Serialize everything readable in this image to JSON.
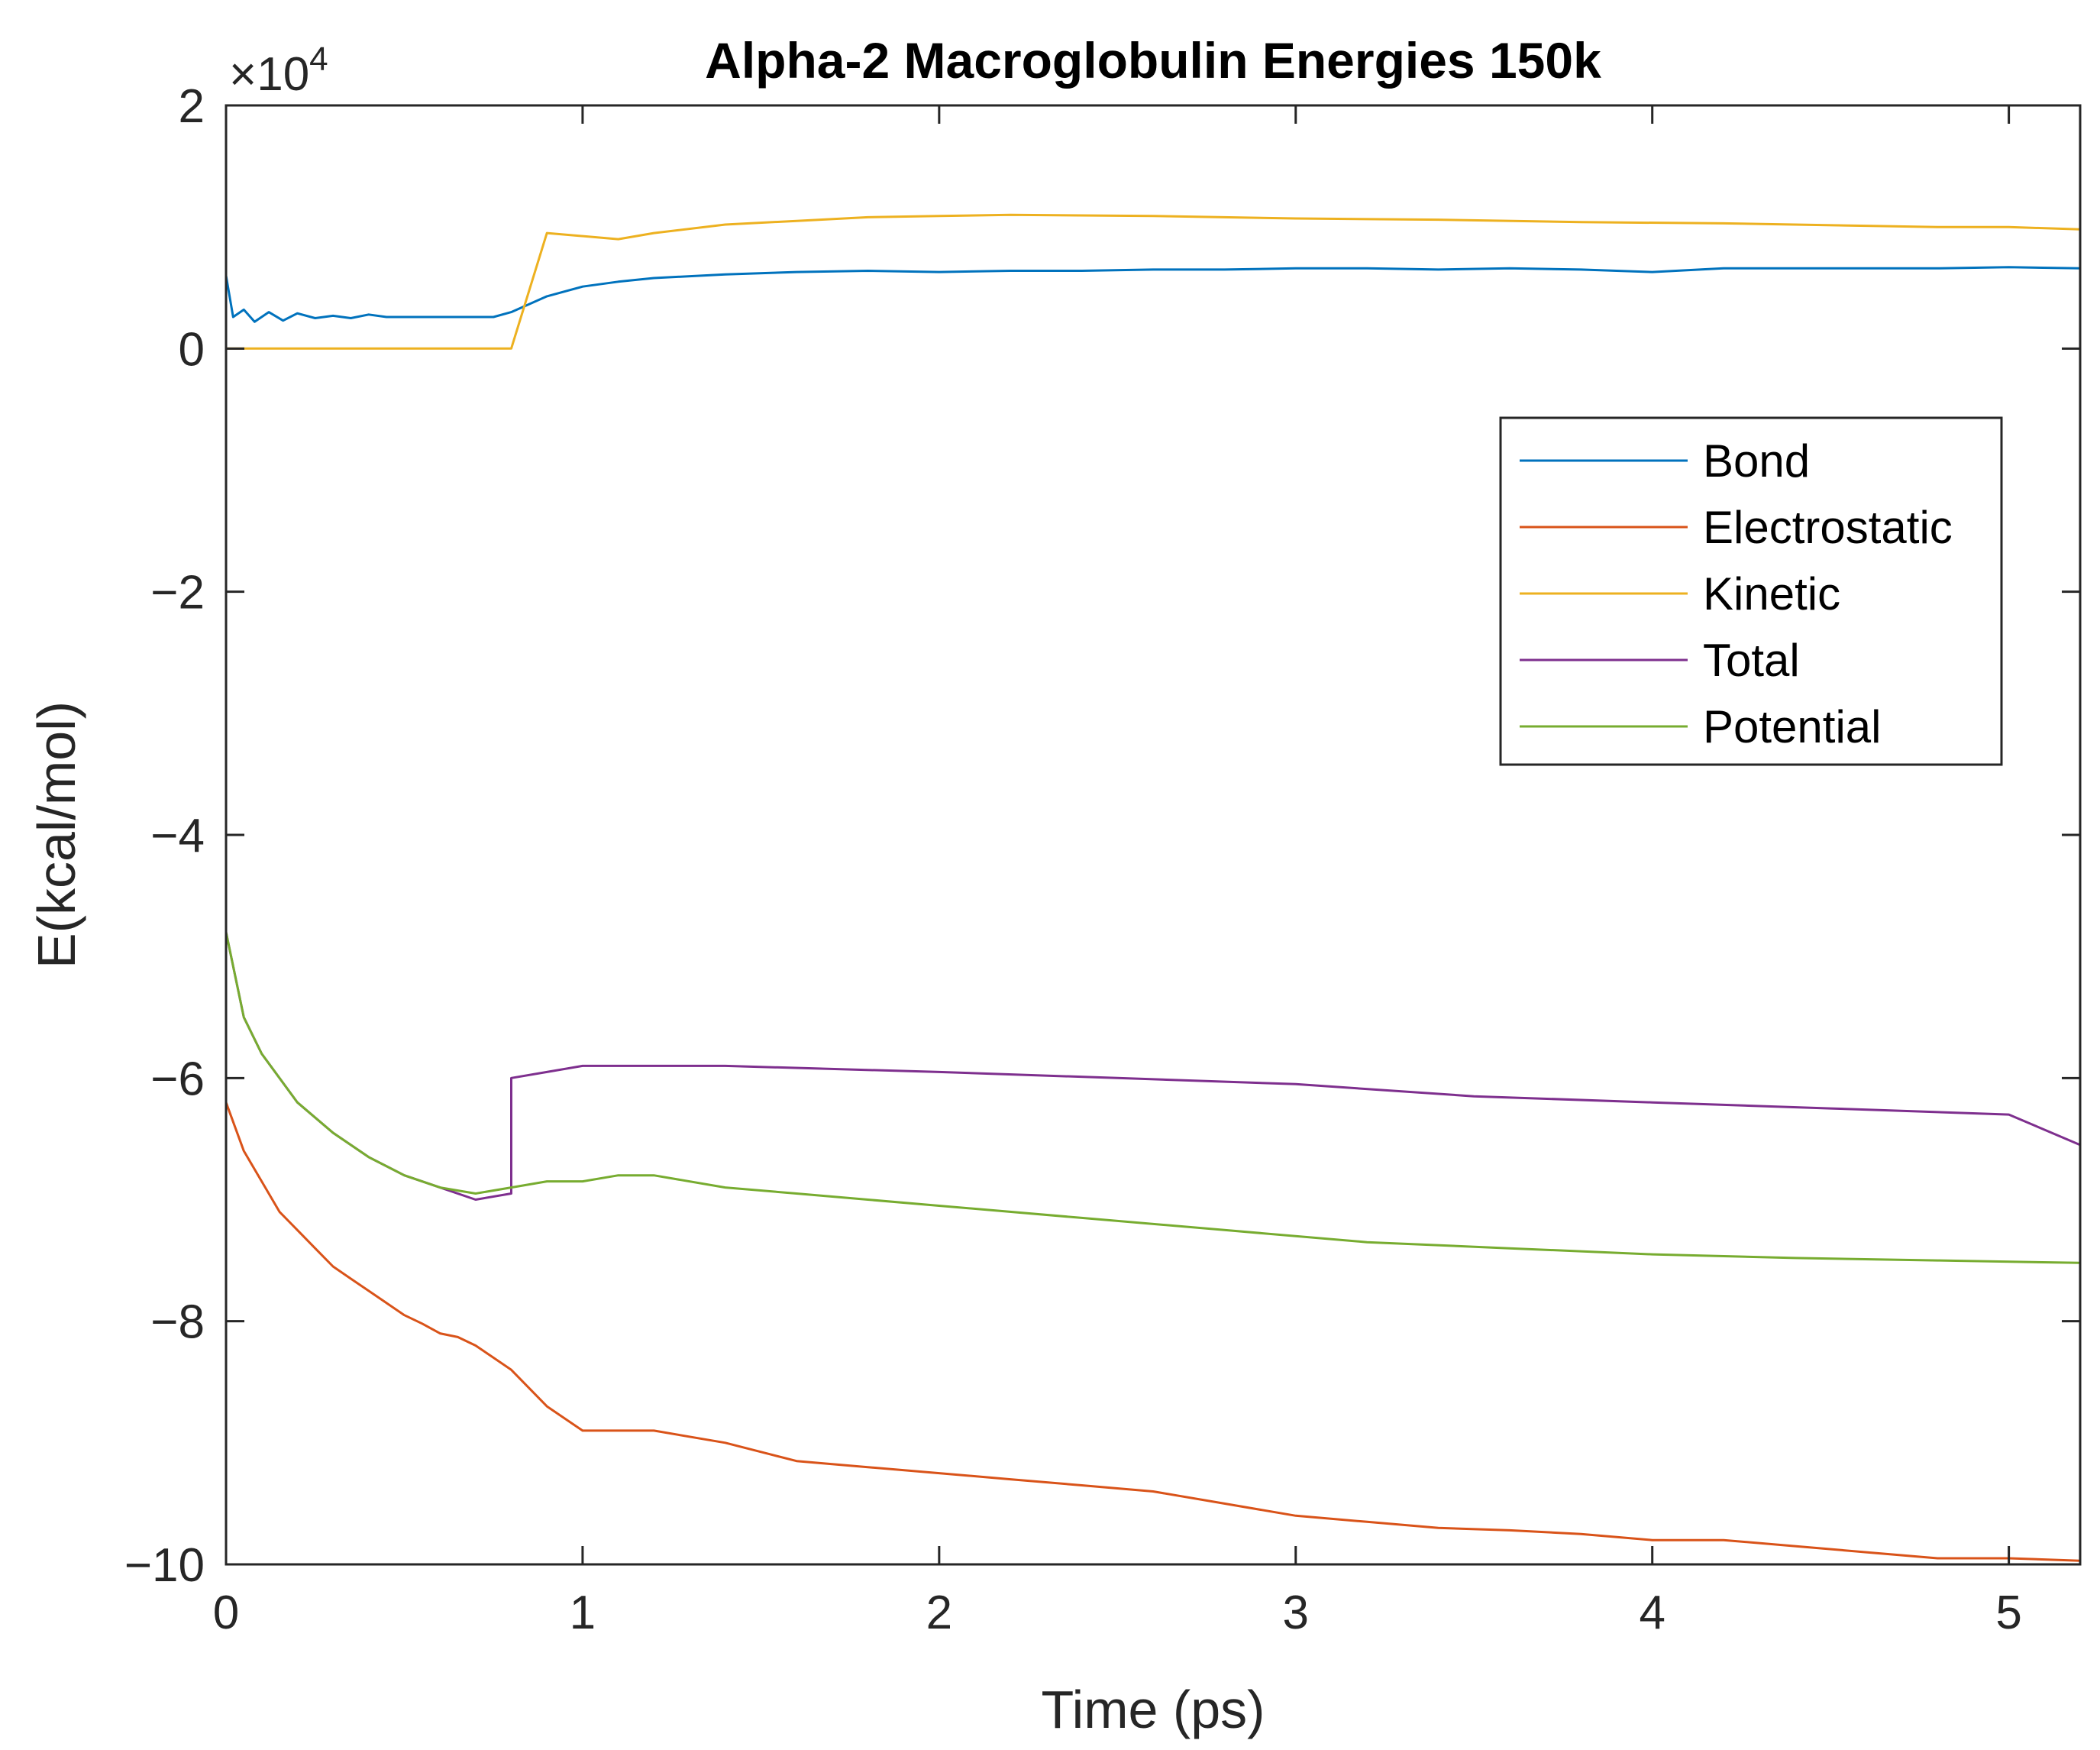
{
  "chart_data": {
    "type": "line",
    "title": "Alpha-2 Macroglobulin Energies 150k",
    "xlabel": "Time (ps)",
    "ylabel": "E(kcal/mol)",
    "xlim": [
      0,
      5.2
    ],
    "ylim": [
      -100000,
      20000
    ],
    "xticks": [
      0,
      1,
      2,
      3,
      4,
      5
    ],
    "xtick_labels": [
      "0",
      "1",
      "2",
      "3",
      "4",
      "5"
    ],
    "yticks": [
      20000,
      0,
      -20000,
      -40000,
      -60000,
      -80000,
      -100000
    ],
    "ytick_labels": [
      "2",
      "0",
      "−2",
      "−4",
      "−6",
      "−8",
      "−10"
    ],
    "y_exponent": {
      "base": "×10",
      "power": "4"
    },
    "legend_location": "right",
    "series": [
      {
        "name": "Bond",
        "color": "#0072BD",
        "x": [
          0,
          0.02,
          0.05,
          0.08,
          0.12,
          0.16,
          0.2,
          0.25,
          0.3,
          0.35,
          0.4,
          0.45,
          0.5,
          0.55,
          0.6,
          0.65,
          0.7,
          0.75,
          0.8,
          0.9,
          1.0,
          1.1,
          1.2,
          1.4,
          1.6,
          1.8,
          2.0,
          2.2,
          2.4,
          2.6,
          2.8,
          3.0,
          3.2,
          3.4,
          3.6,
          3.8,
          4.0,
          4.2,
          4.4,
          4.6,
          4.8,
          5.0,
          5.2
        ],
        "values": [
          6000,
          2600,
          3200,
          2200,
          3000,
          2300,
          2900,
          2500,
          2700,
          2500,
          2800,
          2600,
          2600,
          2600,
          2600,
          2600,
          2600,
          2600,
          3000,
          4300,
          5100,
          5500,
          5800,
          6100,
          6300,
          6400,
          6300,
          6400,
          6400,
          6500,
          6500,
          6600,
          6600,
          6500,
          6600,
          6500,
          6300,
          6600,
          6600,
          6600,
          6600,
          6700,
          6600
        ]
      },
      {
        "name": "Electrostatic",
        "color": "#D95319",
        "x": [
          0,
          0.05,
          0.1,
          0.15,
          0.2,
          0.25,
          0.3,
          0.35,
          0.4,
          0.45,
          0.5,
          0.55,
          0.6,
          0.65,
          0.7,
          0.75,
          0.8,
          0.9,
          1.0,
          1.2,
          1.4,
          1.6,
          1.8,
          2.0,
          2.2,
          2.4,
          2.6,
          2.8,
          3.0,
          3.2,
          3.4,
          3.6,
          3.8,
          4.0,
          4.2,
          4.4,
          4.6,
          4.8,
          5.0,
          5.2
        ],
        "values": [
          -62000,
          -66000,
          -68500,
          -71000,
          -72500,
          -74000,
          -75500,
          -76500,
          -77500,
          -78500,
          -79500,
          -80200,
          -81000,
          -81300,
          -82000,
          -83000,
          -84000,
          -87000,
          -89000,
          -89000,
          -90000,
          -91500,
          -92000,
          -92500,
          -93000,
          -93500,
          -94000,
          -95000,
          -96000,
          -96500,
          -97000,
          -97200,
          -97500,
          -98000,
          -98000,
          -98500,
          -99000,
          -99500,
          -99500,
          -99700
        ]
      },
      {
        "name": "Kinetic",
        "color": "#EDB120",
        "x": [
          0,
          0.5,
          0.8,
          0.9,
          1.1,
          1.2,
          1.4,
          1.6,
          1.8,
          2.0,
          2.2,
          2.6,
          3.0,
          3.4,
          3.8,
          4.2,
          4.6,
          4.8,
          5.0,
          5.2
        ],
        "values": [
          0,
          0,
          0,
          9500,
          9000,
          9500,
          10200,
          10500,
          10800,
          10900,
          11000,
          10900,
          10700,
          10600,
          10400,
          10300,
          10100,
          10000,
          10000,
          9800
        ]
      },
      {
        "name": "Total",
        "color": "#7E2F8E",
        "x": [
          0,
          0.05,
          0.1,
          0.2,
          0.3,
          0.4,
          0.5,
          0.6,
          0.7,
          0.8,
          0.8,
          0.9,
          1.0,
          1.4,
          2.0,
          2.5,
          3.0,
          3.5,
          4.0,
          4.5,
          5.0,
          5.2
        ],
        "values": [
          -48000,
          -55000,
          -58000,
          -62000,
          -64500,
          -66500,
          -68000,
          -69000,
          -70000,
          -69500,
          -60000,
          -59500,
          -59000,
          -59000,
          -59500,
          -60000,
          -60500,
          -61500,
          -62000,
          -62500,
          -63000,
          -65500
        ]
      },
      {
        "name": "Potential",
        "color": "#77AC30",
        "x": [
          0,
          0.05,
          0.1,
          0.2,
          0.3,
          0.4,
          0.5,
          0.6,
          0.7,
          0.8,
          0.9,
          1.0,
          1.1,
          1.2,
          1.4,
          1.6,
          1.8,
          2.0,
          2.4,
          2.8,
          3.2,
          3.6,
          4.0,
          4.4,
          4.8,
          5.2
        ],
        "values": [
          -48000,
          -55000,
          -58000,
          -62000,
          -64500,
          -66500,
          -68000,
          -69000,
          -69500,
          -69000,
          -68500,
          -68500,
          -68000,
          -68000,
          -69000,
          -69500,
          -70000,
          -70500,
          -71500,
          -72500,
          -73500,
          -74000,
          -74500,
          -74800,
          -75000,
          -75200
        ]
      }
    ]
  }
}
